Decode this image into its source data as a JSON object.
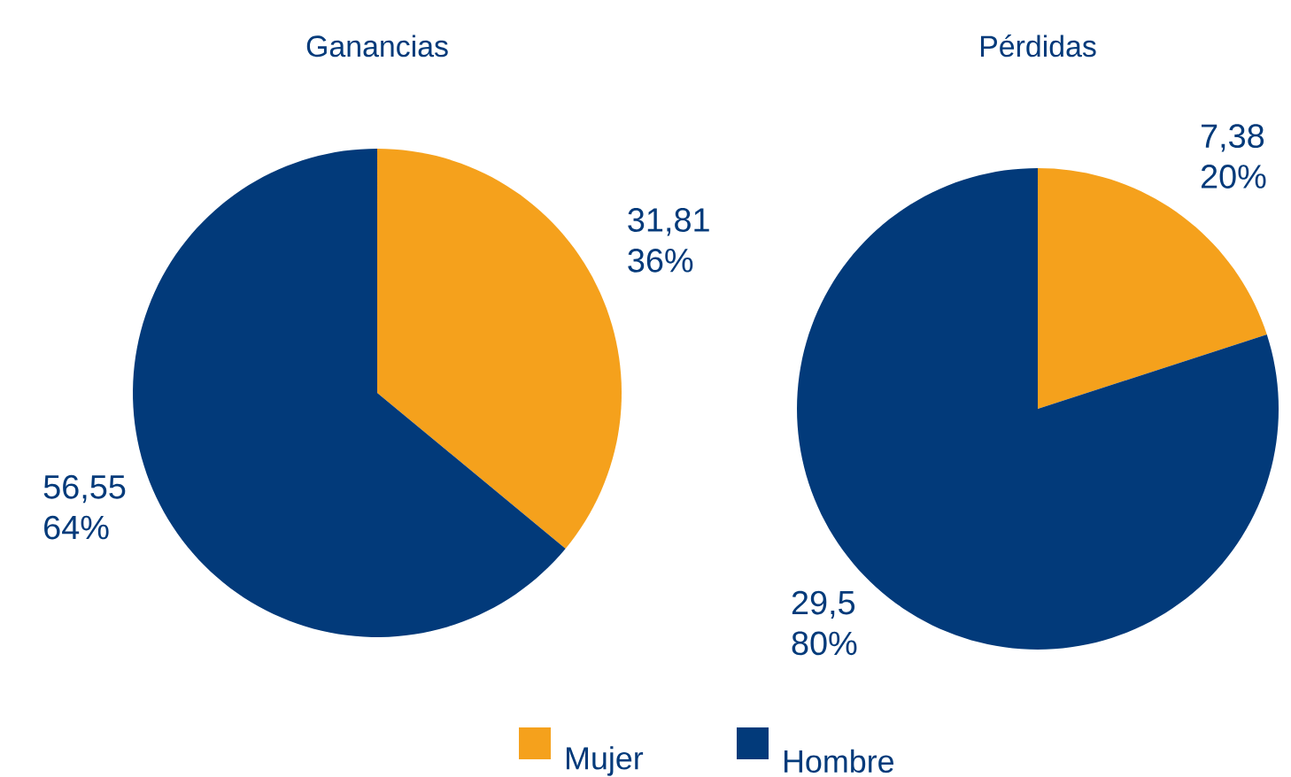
{
  "chart_data": [
    {
      "type": "pie",
      "title": "Ganancias",
      "categories": [
        "Mujer",
        "Hombre"
      ],
      "values": [
        31.81,
        56.55
      ],
      "colors": [
        "#f5a11c",
        "#023a7a"
      ],
      "value_labels": [
        "31,81 36%",
        "56,55 64%"
      ],
      "legend": "bottom"
    },
    {
      "type": "pie",
      "title": "Pérdidas",
      "categories": [
        null,
        null
      ],
      "values": [
        7.38,
        29.5
      ],
      "colors": [
        "#f5a11c",
        "#023a7a"
      ],
      "value_labels": [
        "7,38 20%",
        "29,5 80%"
      ]
    }
  ]
}
